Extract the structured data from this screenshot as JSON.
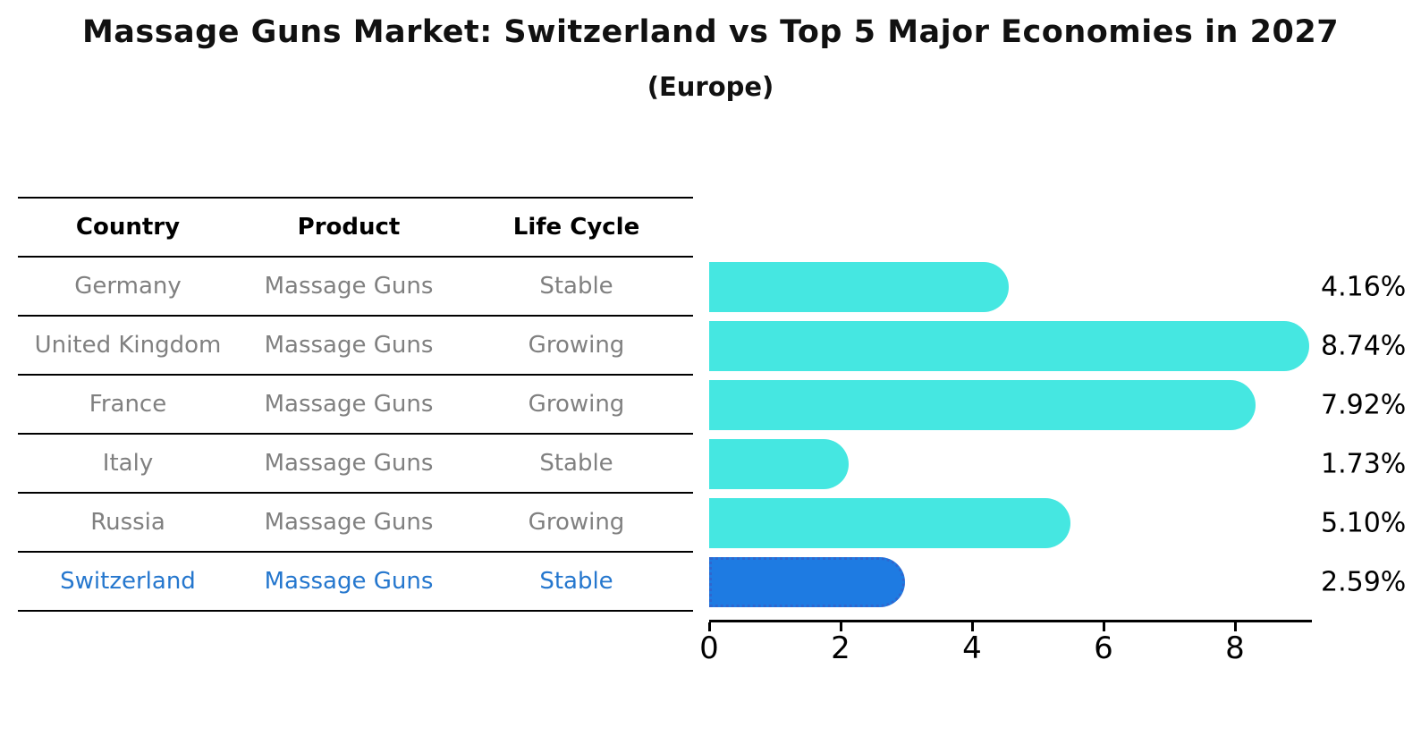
{
  "title": "Massage Guns Market: Switzerland vs Top 5 Major Economies in 2027",
  "subtitle": "(Europe)",
  "table": {
    "headers": [
      "Country",
      "Product",
      "Life Cycle"
    ],
    "rows": [
      {
        "country": "Germany",
        "product": "Massage Guns",
        "life_cycle": "Stable"
      },
      {
        "country": "United Kingdom",
        "product": "Massage Guns",
        "life_cycle": "Growing"
      },
      {
        "country": "France",
        "product": "Massage Guns",
        "life_cycle": "Growing"
      },
      {
        "country": "Italy",
        "product": "Massage Guns",
        "life_cycle": "Stable"
      },
      {
        "country": "Russia",
        "product": "Massage Guns",
        "life_cycle": "Growing"
      },
      {
        "country": "Switzerland",
        "product": "Massage Guns",
        "life_cycle": "Stable"
      }
    ],
    "highlighted_row": "Switzerland"
  },
  "chart_data": {
    "type": "bar",
    "orientation": "horizontal",
    "categories": [
      "Germany",
      "United Kingdom",
      "France",
      "Italy",
      "Russia",
      "Switzerland"
    ],
    "values": [
      4.16,
      8.74,
      7.92,
      1.73,
      5.1,
      2.59
    ],
    "value_labels": [
      "4.16%",
      "8.74%",
      "7.92%",
      "1.73%",
      "5.10%",
      "2.59%"
    ],
    "xticks": [
      0,
      2,
      4,
      6,
      8
    ],
    "xlim": [
      0,
      9.17
    ],
    "highlight_index": 5,
    "grid": false,
    "legend": false
  },
  "colors": {
    "bar": "#45E7E1",
    "highlight_bar": "#1E7BE2",
    "highlight_bar_border": "#2F66CE",
    "highlight_text": "#2577CE",
    "table_text": "#808080"
  }
}
